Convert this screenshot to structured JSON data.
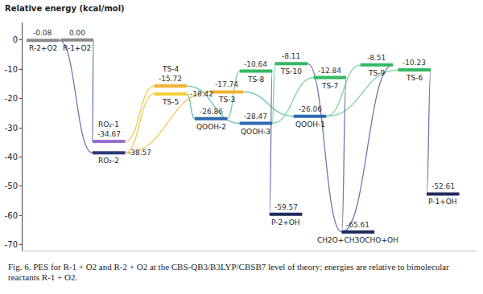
{
  "chart_data": {
    "type": "energy_diagram",
    "y_label": "Relative energy (kcal/mol)",
    "caption": "Fig. 6. PES for R-1 + O2 and R-2 + O2 at the CBS-QB3/B3LYP/CBSB7 level of theory; energies are relative to bimolecular reactants R-1 + O2.",
    "xlim": [
      0,
      100
    ],
    "ylim": [
      -72,
      6
    ],
    "yticks": [
      0,
      -10,
      -20,
      -30,
      -40,
      -50,
      -60,
      -70
    ],
    "tick_labels": "y",
    "grid": false,
    "levels": [
      {
        "name": "R-2+O2",
        "x": 4.5,
        "value": -0.08,
        "color": "#8c8c8c"
      },
      {
        "name": "R-1+O2",
        "x": 12,
        "value": 0,
        "value_label": "0.00",
        "color": "#8c8c8c"
      },
      {
        "name": "RO₂-1",
        "x": 19,
        "value": -34.67,
        "color": "#9b6fd0"
      },
      {
        "name": "RO₂-2",
        "x": 19,
        "value": -38.57,
        "color": "#2b3a7a"
      },
      {
        "name": "TS-4",
        "x": 32.6,
        "value": -15.72,
        "color": "#f2b233"
      },
      {
        "name": "TS-5",
        "x": 32.6,
        "value": -18.42,
        "color": "#f5cf3a"
      },
      {
        "name": "TS-3",
        "x": 45,
        "value": -17.74,
        "color": "#f2b233"
      },
      {
        "name": "QOOH-2",
        "x": 41.5,
        "value": -26.86,
        "color": "#2e6ab0"
      },
      {
        "name": "QOOH-3",
        "x": 51.4,
        "value": -28.47,
        "color": "#2e6ab0"
      },
      {
        "name": "TS-8",
        "x": 51.4,
        "value": -10.64,
        "color": "#33b864"
      },
      {
        "name": "TS-10",
        "x": 59.2,
        "value": -8.11,
        "color": "#33b864"
      },
      {
        "name": "QOOH-1",
        "x": 63.3,
        "value": -26.06,
        "color": "#2e6ab0"
      },
      {
        "name": "TS-7",
        "x": 67.7,
        "value": -12.84,
        "color": "#33b864"
      },
      {
        "name": "TS-9",
        "x": 78,
        "value": -8.51,
        "color": "#33b864"
      },
      {
        "name": "TS-6",
        "x": 86.3,
        "value": -10.23,
        "color": "#33b864"
      },
      {
        "name": "P-2+OH",
        "x": 58,
        "value": -59.57,
        "color": "#1f2a5c"
      },
      {
        "name": "CH2O+CH3OCHO+OH",
        "x": 73.9,
        "value": -65.61,
        "color": "#1f2a5c"
      },
      {
        "name": "P-1+OH",
        "x": 92.6,
        "value": -52.61,
        "color": "#1f2a5c"
      }
    ],
    "connections": [
      {
        "from": "R-1+O2",
        "to": "RO₂-1",
        "color": "#6c7aa6"
      },
      {
        "from": "R-2+O2",
        "to": "RO₂-2",
        "color": "#6c7aa6"
      },
      {
        "from": "RO₂-1",
        "to": "TS-4",
        "color": "#f0c85a"
      },
      {
        "from": "RO₂-2",
        "to": "TS-5",
        "color": "#f0c85a"
      },
      {
        "from": "RO₂-2",
        "to": "TS-3",
        "color": "#f0c85a"
      },
      {
        "from": "TS-4",
        "to": "QOOH-3",
        "color": "#6cc0b0"
      },
      {
        "from": "TS-5",
        "to": "QOOH-2",
        "color": "#6cc0b0"
      },
      {
        "from": "TS-3",
        "to": "QOOH-1",
        "color": "#6cc0b0"
      },
      {
        "from": "QOOH-2",
        "to": "TS-8",
        "color": "#7dd3a8"
      },
      {
        "from": "QOOH-3",
        "to": "TS-10",
        "color": "#7dd3a8"
      },
      {
        "from": "QOOH-3",
        "to": "TS-7",
        "color": "#7dd3a8"
      },
      {
        "from": "QOOH-1",
        "to": "TS-9",
        "color": "#7dd3a8"
      },
      {
        "from": "QOOH-1",
        "to": "TS-6",
        "color": "#7dd3a8"
      },
      {
        "from": "TS-8",
        "to": "P-2+OH",
        "color": "#6a78a8"
      },
      {
        "from": "TS-10",
        "to": "CH2O+CH3OCHO+OH",
        "color": "#6a78a8"
      },
      {
        "from": "TS-7",
        "to": "CH2O+CH3OCHO+OH",
        "color": "#6a78a8"
      },
      {
        "from": "TS-9",
        "to": "CH2O+CH3OCHO+OH",
        "color": "#6a78a8"
      },
      {
        "from": "TS-6",
        "to": "P-1+OH",
        "color": "#6a78a8"
      }
    ]
  }
}
